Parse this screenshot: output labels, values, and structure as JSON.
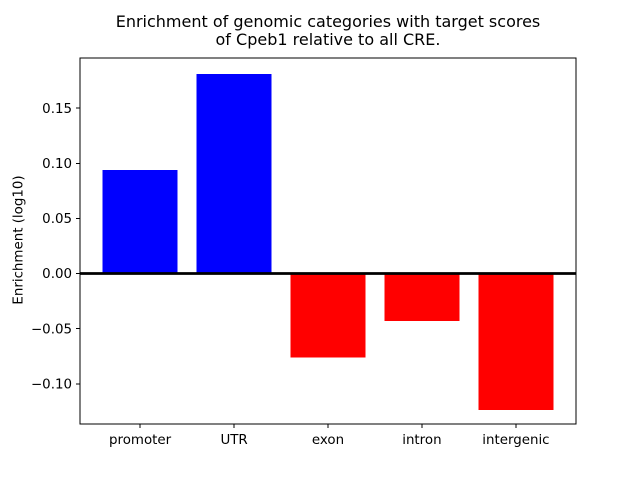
{
  "figure": {
    "background": "#ffffff",
    "text_color": "#000000"
  },
  "chart_data": {
    "type": "bar",
    "title": "Enrichment of genomic categories with target scores of Cpeb1 relative to all CRE.",
    "title_lines": [
      "Enrichment of genomic categories with target scores",
      "of Cpeb1 relative to all CRE."
    ],
    "xlabel": "",
    "ylabel": "Enrichment (log10)",
    "categories": [
      "promoter",
      "UTR",
      "exon",
      "intron",
      "intergenic"
    ],
    "values": [
      0.094,
      0.181,
      -0.076,
      -0.043,
      -0.124
    ],
    "bar_colors": [
      "#0000ff",
      "#0000ff",
      "#ff0000",
      "#ff0000",
      "#ff0000"
    ],
    "positive_color": "#0000ff",
    "negative_color": "#ff0000",
    "ylim": [
      -0.1365,
      0.1955
    ],
    "yticks": [
      -0.1,
      -0.05,
      0.0,
      0.05,
      0.1,
      0.15
    ],
    "ytick_labels": [
      "−0.10",
      "−0.05",
      "0.00",
      "0.05",
      "0.10",
      "0.15"
    ],
    "zero_line": true,
    "zero_line_color": "#000000",
    "axis_color": "#000000",
    "grid": false,
    "legend": null
  }
}
